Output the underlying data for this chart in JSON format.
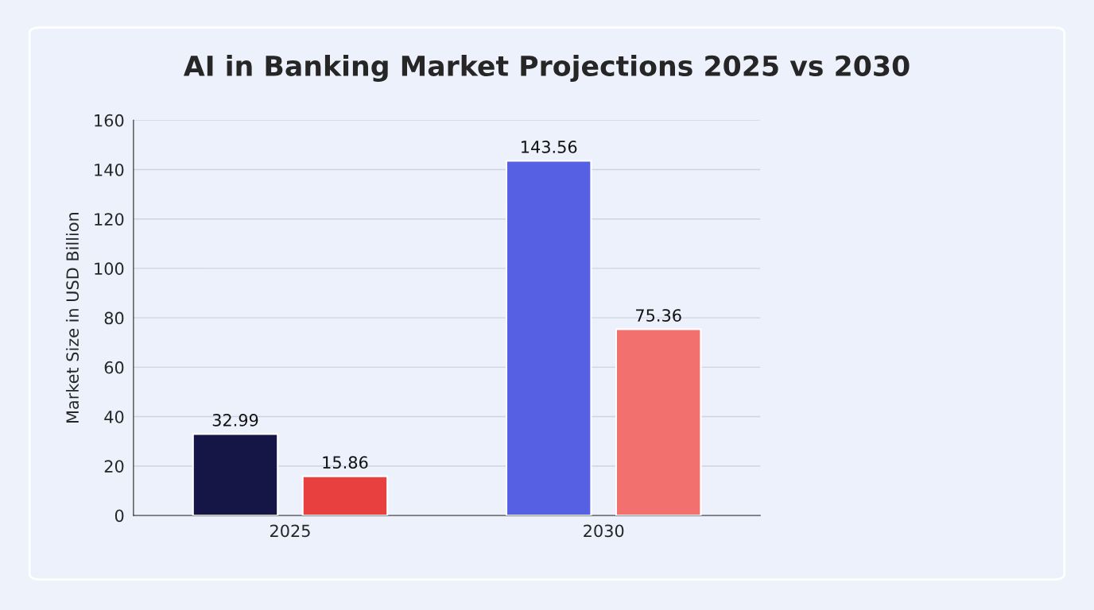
{
  "chart_data": {
    "type": "bar",
    "title": "AI in Banking Market Projections 2025 vs 2030",
    "ylabel": "Market Size in USD Billion",
    "categories": [
      "2025",
      "2030"
    ],
    "series": [
      {
        "color": "#161646",
        "values": [
          32.99,
          null
        ]
      },
      {
        "color": "#e83f3f",
        "values": [
          15.86,
          null
        ]
      },
      {
        "color": "#5560e2",
        "values": [
          null,
          143.56
        ]
      },
      {
        "color": "#f2716e",
        "values": [
          null,
          75.36
        ]
      }
    ],
    "ylim": [
      0,
      160
    ],
    "yticks": [
      0,
      20,
      40,
      60,
      80,
      100,
      120,
      140,
      160
    ],
    "grid": "y",
    "data_labels": true
  }
}
